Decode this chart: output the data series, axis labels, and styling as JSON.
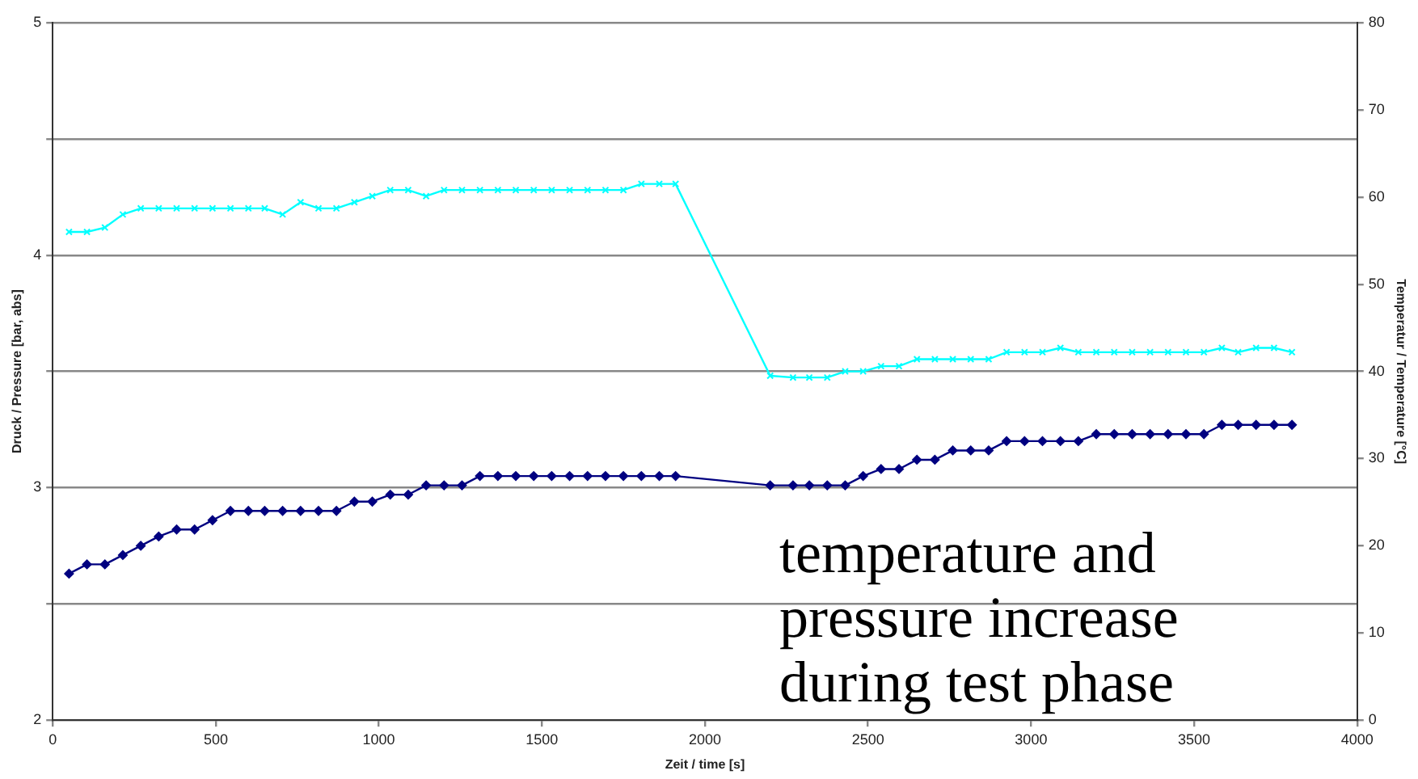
{
  "chart_data": {
    "type": "line",
    "xlabel": "Zeit / time [s]",
    "ylabel": "Druck / Pressure [bar, abs]",
    "y2label": "Temperatur / Temperature [°C]",
    "annotations": [
      "temperature and pressure increase during test phase"
    ],
    "x": [
      50,
      105,
      160,
      215,
      270,
      325,
      380,
      435,
      490,
      545,
      600,
      650,
      705,
      760,
      815,
      870,
      925,
      980,
      1035,
      1090,
      1145,
      1200,
      1255,
      1310,
      1365,
      1420,
      1475,
      1530,
      1585,
      1640,
      1695,
      1750,
      1805,
      1860,
      1910,
      2200,
      2270,
      2320,
      2375,
      2430,
      2485,
      2540,
      2595,
      2650,
      2705,
      2760,
      2815,
      2870,
      2925,
      2980,
      3035,
      3090,
      3145,
      3200,
      3255,
      3310,
      3365,
      3420,
      3475,
      3530,
      3585,
      3635,
      3690,
      3745,
      3800
    ],
    "series": [
      {
        "color": "#000080",
        "marker": "diamond",
        "values": [
          2.63,
          2.67,
          2.67,
          2.71,
          2.75,
          2.79,
          2.82,
          2.82,
          2.86,
          2.9,
          2.9,
          2.9,
          2.9,
          2.9,
          2.9,
          2.9,
          2.94,
          2.94,
          2.97,
          2.97,
          3.01,
          3.01,
          3.01,
          3.05,
          3.05,
          3.05,
          3.05,
          3.05,
          3.05,
          3.05,
          3.05,
          3.05,
          3.05,
          3.05,
          3.05,
          3.01,
          3.01,
          3.01,
          3.01,
          3.01,
          3.05,
          3.08,
          3.08,
          3.12,
          3.12,
          3.16,
          3.16,
          3.16,
          3.2,
          3.2,
          3.2,
          3.2,
          3.2,
          3.23,
          3.23,
          3.23,
          3.23,
          3.23,
          3.23,
          3.23,
          3.27,
          3.27,
          3.27,
          3.27,
          3.27
        ]
      },
      {
        "color": "#00ffff",
        "marker": "cross",
        "axis": "y2",
        "values": [
          56,
          56,
          56.5,
          58,
          58.7,
          58.7,
          58.7,
          58.7,
          58.7,
          58.7,
          58.7,
          58.7,
          58,
          59.4,
          58.7,
          58.7,
          59.4,
          60.1,
          60.8,
          60.8,
          60.1,
          60.8,
          60.8,
          60.8,
          60.8,
          60.8,
          60.8,
          60.8,
          60.8,
          60.8,
          60.8,
          60.8,
          61.5,
          61.5,
          61.5,
          39.5,
          39.3,
          39.3,
          39.3,
          40,
          40,
          40.6,
          40.6,
          41.4,
          41.4,
          41.4,
          41.4,
          41.4,
          42.2,
          42.2,
          42.2,
          42.7,
          42.2,
          42.2,
          42.2,
          42.2,
          42.2,
          42.2,
          42.2,
          42.2,
          42.7,
          42.2,
          42.7,
          42.7,
          42.2
        ]
      }
    ],
    "xlim": [
      0,
      4000
    ],
    "xticks": [
      0,
      500,
      1000,
      1500,
      2000,
      2500,
      3000,
      3500,
      4000
    ],
    "ylim": [
      2,
      5
    ],
    "yticks": [
      2,
      {
        "value": 2.5,
        "label": null
      },
      3,
      {
        "value": 3.5,
        "label": null
      },
      4,
      {
        "value": 4.5,
        "label": null
      },
      5
    ],
    "y2lim": [
      0,
      80
    ],
    "y2ticks": [
      0,
      10,
      20,
      30,
      40,
      50,
      60,
      70,
      80
    ],
    "grid": "y",
    "legend": false
  }
}
